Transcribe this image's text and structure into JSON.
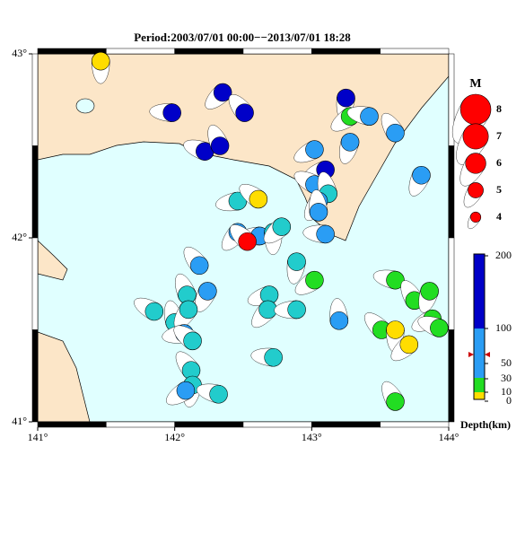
{
  "chart_data": {
    "type": "focal-map",
    "title": "Period:2003/07/01 00:00−−2013/07/01 18:28",
    "xlim": [
      141,
      144
    ],
    "ylim": [
      41,
      43
    ],
    "xticks": [
      {
        "value": 141,
        "label": "141°"
      },
      {
        "value": 142,
        "label": "142°"
      },
      {
        "value": 143,
        "label": "143°"
      },
      {
        "value": 144,
        "label": "144°"
      }
    ],
    "yticks": [
      {
        "value": 41,
        "label": "41°"
      },
      {
        "value": 42,
        "label": "42°"
      },
      {
        "value": 43,
        "label": "43°"
      }
    ],
    "legend_title": "M",
    "magnitudes": [
      8,
      7,
      6,
      5,
      4
    ],
    "legend_color": "#ff0000",
    "depth_title": "Depth(km)",
    "depth_ticks": [
      200,
      100,
      50,
      30,
      10,
      0
    ],
    "events": {
      "lon": [
        141.46,
        142.35,
        141.98,
        142.51,
        143.25,
        143.28,
        143.42,
        143.61,
        143.28,
        143.02,
        142.22,
        142.33,
        143.8,
        143.1,
        143.02,
        143.12,
        143.05,
        142.46,
        142.61,
        143.05,
        142.46,
        142.62,
        142.53,
        142.72,
        142.78,
        143.1,
        142.18,
        142.89,
        143.02,
        143.61,
        143.75,
        143.86,
        143.88,
        143.93,
        142.09,
        142.24,
        142.69,
        141.85,
        142.0,
        142.1,
        142.07,
        142.13,
        143.2,
        142.68,
        142.89,
        143.51,
        143.61,
        143.71,
        142.72,
        142.12,
        142.13,
        142.08,
        142.32,
        143.61
      ],
      "lat": [
        42.96,
        42.79,
        42.68,
        42.68,
        42.76,
        42.66,
        42.66,
        42.57,
        42.52,
        42.48,
        42.47,
        42.5,
        42.34,
        42.37,
        42.29,
        42.24,
        42.2,
        42.2,
        42.21,
        42.14,
        42.03,
        42.01,
        41.98,
        42.03,
        42.06,
        42.02,
        41.85,
        41.87,
        41.77,
        41.77,
        41.66,
        41.71,
        41.56,
        41.51,
        41.69,
        41.71,
        41.69,
        41.6,
        41.54,
        41.61,
        41.48,
        41.44,
        41.55,
        41.61,
        41.61,
        41.5,
        41.5,
        41.42,
        41.35,
        41.28,
        41.2,
        41.17,
        41.15,
        41.11
      ],
      "color": [
        "#ffdd00",
        "#0000c8",
        "#0000c8",
        "#0000c8",
        "#0000c8",
        "#22dd22",
        "#2a9df4",
        "#2a9df4",
        "#2a9df4",
        "#2a9df4",
        "#0000c8",
        "#0000c8",
        "#2a9df4",
        "#0000c8",
        "#2a9df4",
        "#22cccc",
        "#2a9df4",
        "#22cccc",
        "#ffdd00",
        "#2a9df4",
        "#2a9df4",
        "#2a9df4",
        "#ff0000",
        "#22cccc",
        "#22cccc",
        "#2a9df4",
        "#2a9df4",
        "#22cccc",
        "#22dd22",
        "#22dd22",
        "#22dd22",
        "#22dd22",
        "#22dd22",
        "#22dd22",
        "#22cccc",
        "#2a9df4",
        "#22cccc",
        "#22cccc",
        "#22cccc",
        "#22cccc",
        "#2a9df4",
        "#22cccc",
        "#2a9df4",
        "#22cccc",
        "#22cccc",
        "#22dd22",
        "#ffdd00",
        "#ffdd00",
        "#22cccc",
        "#22cccc",
        "#22cccc",
        "#2a9df4",
        "#22cccc",
        "#22dd22"
      ]
    }
  }
}
